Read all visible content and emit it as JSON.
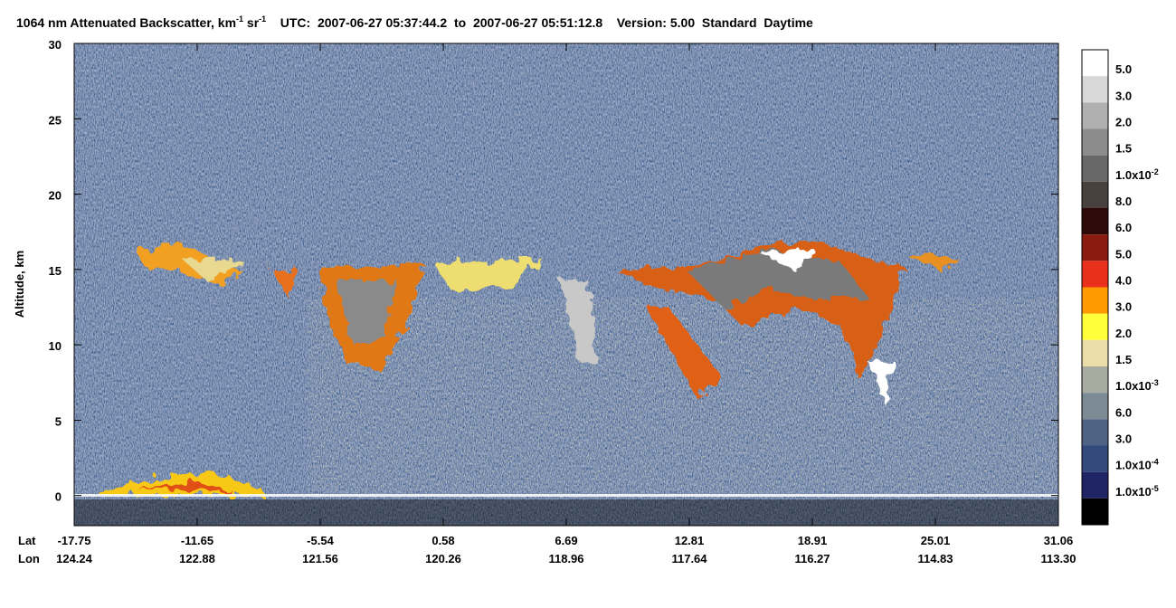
{
  "chart_data": {
    "type": "curtain",
    "title": [
      {
        "text": "1064 nm Attenuated Backscatter, km"
      },
      {
        "sup": "-1"
      },
      {
        "text": " sr"
      },
      {
        "sup": "-1"
      },
      {
        "text": "    UTC:  2007-06-27 05:37:44.2  to  2007-06-27 05:51:12.8    Version: 5.00  Standard  Daytime"
      }
    ],
    "y_label": "Altitude, km",
    "ylim": [
      -2,
      30
    ],
    "yticks": [
      0,
      5,
      10,
      15,
      20,
      25,
      30
    ],
    "x_row_names": [
      "Lat",
      "Lon"
    ],
    "lat": [
      "-17.75",
      "-11.65",
      "-5.54",
      "0.58",
      "6.69",
      "12.81",
      "18.91",
      "25.01",
      "31.06"
    ],
    "lon": [
      "124.24",
      "122.88",
      "121.56",
      "120.26",
      "118.96",
      "117.64",
      "116.27",
      "114.83",
      "113.30"
    ],
    "colorbar": {
      "colors": [
        "#ffffff",
        "#d8d8d8",
        "#b0b0b0",
        "#8c8c8c",
        "#686868",
        "#48403c",
        "#2e0a08",
        "#8b1a10",
        "#e8301a",
        "#ff9a00",
        "#ffff3a",
        "#ecdcaa",
        "#a8ab9f",
        "#7c8a96",
        "#4f6485",
        "#34497e",
        "#1f2464",
        "#000000"
      ],
      "labels": [
        {
          "text": "5.0"
        },
        {
          "text": "3.0"
        },
        {
          "text": "2.0"
        },
        {
          "text": "1.5"
        },
        {
          "text": "1.0x10",
          "sup": "-2"
        },
        {
          "text": "8.0"
        },
        {
          "text": "6.0"
        },
        {
          "text": "5.0"
        },
        {
          "text": "4.0"
        },
        {
          "text": "3.0"
        },
        {
          "text": "2.0"
        },
        {
          "text": "1.5"
        },
        {
          "text": "1.0x10",
          "sup": "-3"
        },
        {
          "text": "6.0"
        },
        {
          "text": "3.0"
        },
        {
          "text": "1.0x10",
          "sup": "-4"
        },
        {
          "text": "1.0x10",
          "sup": "-5"
        }
      ]
    }
  }
}
